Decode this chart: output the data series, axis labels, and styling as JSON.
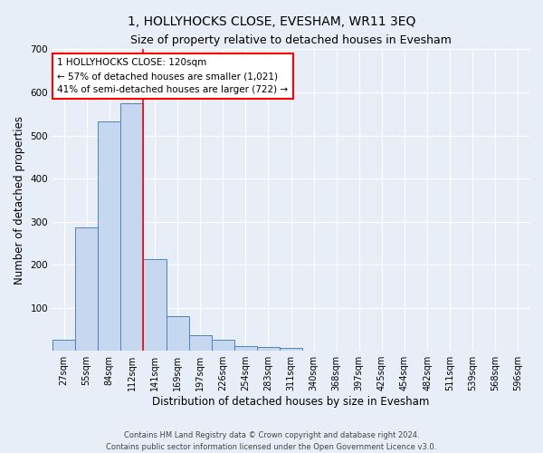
{
  "title": "1, HOLLYHOCKS CLOSE, EVESHAM, WR11 3EQ",
  "subtitle": "Size of property relative to detached houses in Evesham",
  "xlabel": "Distribution of detached houses by size in Evesham",
  "ylabel": "Number of detached properties",
  "bar_labels": [
    "27sqm",
    "55sqm",
    "84sqm",
    "112sqm",
    "141sqm",
    "169sqm",
    "197sqm",
    "226sqm",
    "254sqm",
    "283sqm",
    "311sqm",
    "340sqm",
    "368sqm",
    "397sqm",
    "425sqm",
    "454sqm",
    "482sqm",
    "511sqm",
    "539sqm",
    "568sqm",
    "596sqm"
  ],
  "bar_heights": [
    25,
    287,
    533,
    575,
    213,
    80,
    37,
    25,
    12,
    8,
    6,
    0,
    0,
    0,
    0,
    0,
    0,
    0,
    0,
    0,
    0
  ],
  "bar_color": "#c5d8f0",
  "bar_edge_color": "#4f81bd",
  "annotation_text": "1 HOLLYHOCKS CLOSE: 120sqm\n← 57% of detached houses are smaller (1,021)\n41% of semi-detached houses are larger (722) →",
  "annotation_box_color": "white",
  "annotation_box_edge_color": "red",
  "red_line_index": 3,
  "ylim": [
    0,
    700
  ],
  "yticks": [
    0,
    100,
    200,
    300,
    400,
    500,
    600,
    700
  ],
  "footer_line1": "Contains HM Land Registry data © Crown copyright and database right 2024.",
  "footer_line2": "Contains public sector information licensed under the Open Government Licence v3.0.",
  "bg_color": "#e8eef8",
  "plot_bg_color": "#e8eef8",
  "grid_color": "#ffffff",
  "title_fontsize": 10,
  "subtitle_fontsize": 9,
  "tick_fontsize": 7,
  "ylabel_fontsize": 8.5,
  "xlabel_fontsize": 8.5,
  "annotation_fontsize": 7.5
}
